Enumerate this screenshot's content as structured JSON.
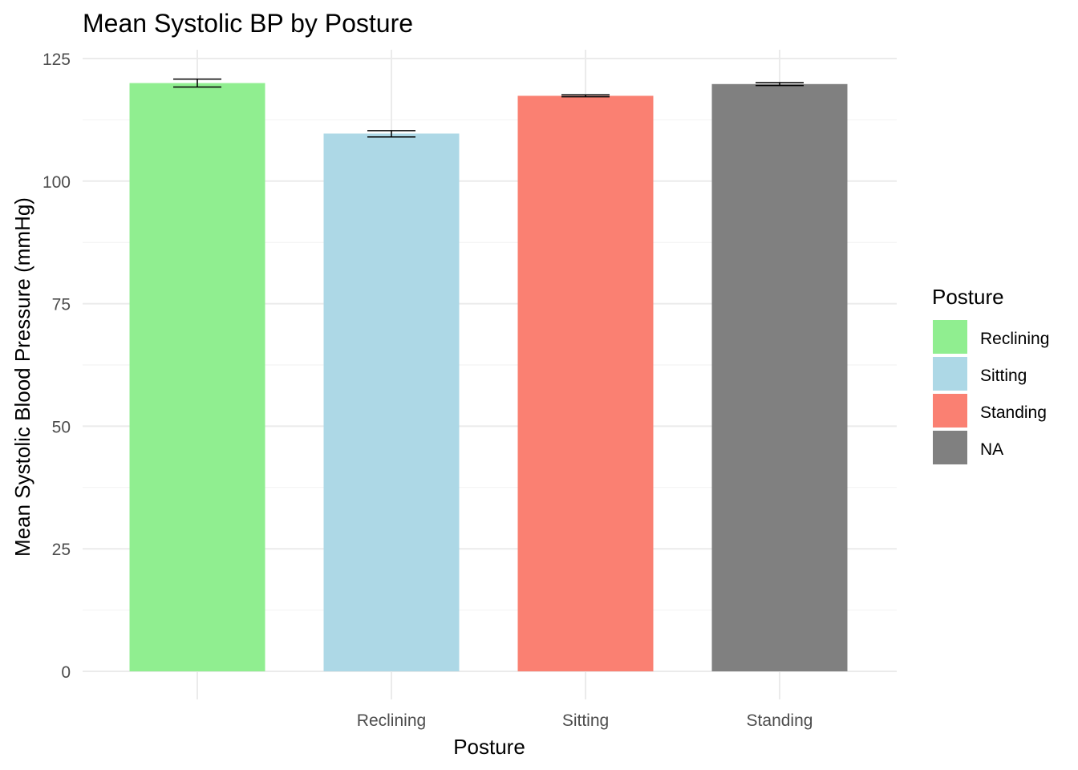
{
  "chart_data": {
    "type": "bar",
    "title": "Mean Systolic BP by Posture",
    "xlabel": "Posture",
    "ylabel": "Mean Systolic Blood Pressure (mmHg)",
    "x_tick_labels": [
      "",
      "Reclining",
      "Sitting",
      "Standing"
    ],
    "ylim": [
      0,
      125
    ],
    "y_ticks": [
      0,
      25,
      50,
      75,
      100,
      125
    ],
    "grid": true,
    "bars": [
      {
        "fill_group": "Reclining",
        "value": 120.0,
        "error_low": 119.2,
        "error_high": 120.8,
        "color": "#90EE90"
      },
      {
        "fill_group": "Sitting",
        "value": 109.7,
        "error_low": 109.0,
        "error_high": 110.3,
        "color": "#ADD8E6"
      },
      {
        "fill_group": "Standing",
        "value": 117.4,
        "error_low": 117.2,
        "error_high": 117.6,
        "color": "#FA8072"
      },
      {
        "fill_group": "NA",
        "value": 119.8,
        "error_low": 119.5,
        "error_high": 120.1,
        "color": "#808080"
      }
    ],
    "legend": {
      "title": "Posture",
      "position": "right",
      "entries": [
        {
          "label": "Reclining",
          "color": "#90EE90"
        },
        {
          "label": "Sitting",
          "color": "#ADD8E6"
        },
        {
          "label": "Standing",
          "color": "#FA8072"
        },
        {
          "label": "NA",
          "color": "#808080"
        }
      ]
    }
  }
}
